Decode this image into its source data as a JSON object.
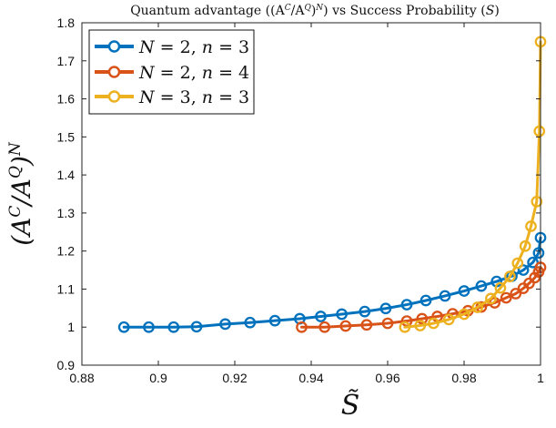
{
  "chart_data": {
    "type": "line",
    "title_prefix": "Quantum advantage ",
    "title_expr": "((A",
    "title_sup1": "C",
    "title_mid": "/A",
    "title_sup2": "Q",
    "title_close": ")",
    "title_supN": "N",
    "title_close2": ")",
    "title_suffix": " vs Success Probability (",
    "title_symbol": "S",
    "title_end": ")",
    "xlabel": "S̃",
    "ylabel_parts": {
      "open": "(A",
      "sup1": "C",
      "mid": "/A",
      "sup2": "Q",
      "close": ")",
      "supN": "N"
    },
    "xlim": [
      0.88,
      1.0
    ],
    "ylim": [
      0.9,
      1.8
    ],
    "xticks": [
      "0.88",
      "0.9",
      "0.92",
      "0.94",
      "0.96",
      "0.98",
      "1"
    ],
    "yticks": [
      "0.9",
      "1",
      "1.1",
      "1.2",
      "1.3",
      "1.4",
      "1.5",
      "1.6",
      "1.7",
      "1.8"
    ],
    "grid": false,
    "legend_position": "top-left",
    "series": [
      {
        "name": "N = 2, n = 3",
        "name_parts": [
          "N",
          " = 2, ",
          "n",
          " = 3"
        ],
        "color": "#0072BD",
        "x": [
          0.891,
          0.8975,
          0.904,
          0.91,
          0.9175,
          0.924,
          0.9305,
          0.937,
          0.9425,
          0.948,
          0.954,
          0.9595,
          0.965,
          0.97,
          0.975,
          0.98,
          0.9845,
          0.9885,
          0.9925,
          0.9955,
          0.998,
          0.9995,
          1.0
        ],
        "y": [
          1.0,
          1.0,
          1.0,
          1.001,
          1.008,
          1.012,
          1.017,
          1.022,
          1.028,
          1.034,
          1.041,
          1.049,
          1.059,
          1.07,
          1.082,
          1.095,
          1.108,
          1.12,
          1.134,
          1.15,
          1.17,
          1.195,
          1.235
        ]
      },
      {
        "name": "N = 2, n = 4",
        "name_parts": [
          "N",
          " = 2, ",
          "n",
          " = 4"
        ],
        "color": "#D95319",
        "x": [
          0.9375,
          0.9435,
          0.949,
          0.9545,
          0.96,
          0.965,
          0.969,
          0.973,
          0.977,
          0.981,
          0.9845,
          0.988,
          0.991,
          0.9935,
          0.9955,
          0.997,
          0.9985,
          0.9995,
          1.0
        ],
        "y": [
          1.0,
          1.0,
          1.003,
          1.006,
          1.01,
          1.016,
          1.022,
          1.028,
          1.035,
          1.043,
          1.053,
          1.064,
          1.077,
          1.088,
          1.102,
          1.115,
          1.13,
          1.145,
          1.157
        ]
      },
      {
        "name": "N = 3, n = 3",
        "name_parts": [
          "N",
          " = 3, ",
          "n",
          " = 3"
        ],
        "color": "#EDB120",
        "x": [
          0.9645,
          0.9685,
          0.972,
          0.976,
          0.98,
          0.9835,
          0.987,
          0.9895,
          0.992,
          0.994,
          0.996,
          0.9975,
          0.999,
          0.9997,
          1.0
        ],
        "y": [
          1.0,
          1.004,
          1.01,
          1.02,
          1.034,
          1.052,
          1.075,
          1.103,
          1.133,
          1.168,
          1.213,
          1.265,
          1.33,
          1.515,
          1.75
        ]
      }
    ]
  }
}
